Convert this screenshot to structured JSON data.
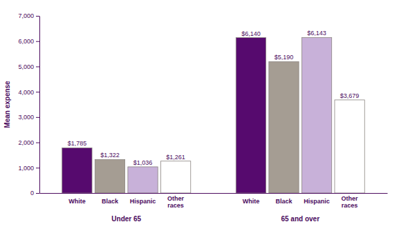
{
  "chart_data": {
    "type": "bar",
    "y_label": "Mean expense",
    "categories": [
      "Under 65",
      "65 and over"
    ],
    "series": [
      {
        "name": "White",
        "color": "#560a6e",
        "values": [
          1785,
          6140
        ],
        "value_labels": [
          "$1,785",
          "$6,140"
        ]
      },
      {
        "name": "Black",
        "color": "#a59d93",
        "values": [
          1322,
          5190
        ],
        "value_labels": [
          "$1,322",
          "$5,190"
        ]
      },
      {
        "name": "Hispanic",
        "color": "#c8b1d9",
        "values": [
          1036,
          6143
        ],
        "value_labels": [
          "$1,036",
          "$6,143"
        ]
      },
      {
        "name": "Other races",
        "color": "#ffffff",
        "values": [
          1261,
          3679
        ],
        "value_labels": [
          "$1,261",
          "$3,679"
        ]
      }
    ],
    "ylim": [
      0,
      7000
    ],
    "yticks": [
      0,
      {
        "value": 1000,
        "label": "1,000"
      },
      {
        "value": 2000,
        "label": "2,000"
      },
      {
        "value": 3000,
        "label": "3,000"
      },
      {
        "value": 4000,
        "label": "4,000"
      },
      {
        "value": 5000,
        "label": "5,000"
      },
      {
        "value": 6000,
        "label": "6,000"
      },
      {
        "value": 7000,
        "label": "7,000"
      }
    ],
    "grid": false,
    "data_labels": true
  }
}
